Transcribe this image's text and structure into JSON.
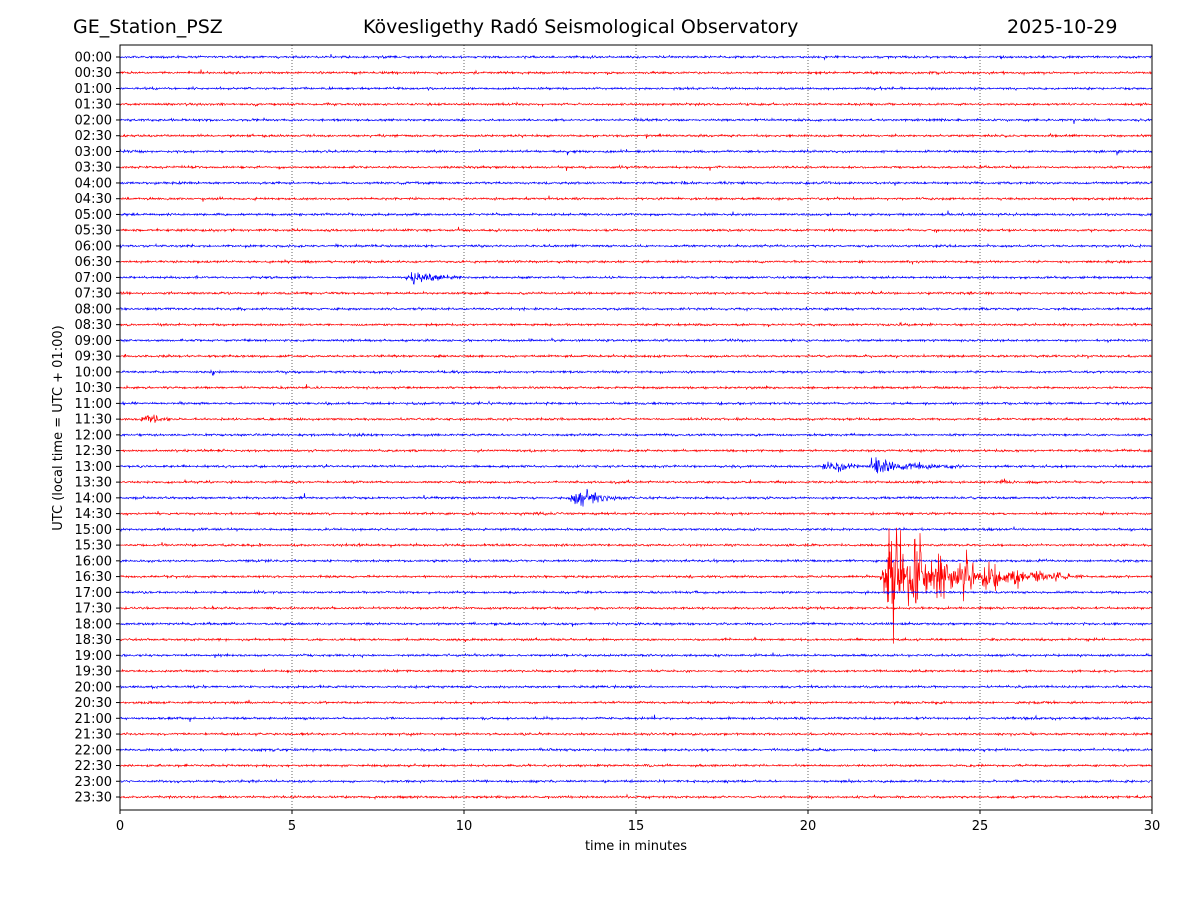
{
  "chart_data": {
    "type": "line",
    "subtype": "helicorder",
    "title_left": "GE_Station_PSZ",
    "title": "Kövesligethy Radó Seismological Observatory",
    "title_right": "2025-10-29",
    "xlabel": "time in minutes",
    "ylabel": "UTC (local time = UTC + 01:00)",
    "xlim": [
      0,
      30
    ],
    "xticks": [
      "0",
      "5",
      "10",
      "15",
      "20",
      "25",
      "30"
    ],
    "xtick_values": [
      0,
      5,
      10,
      15,
      20,
      25,
      30
    ],
    "grid": "vertical dotted at x ticks",
    "row_labels": [
      "00:00",
      "00:30",
      "01:00",
      "01:30",
      "02:00",
      "02:30",
      "03:00",
      "03:30",
      "04:00",
      "04:30",
      "05:00",
      "05:30",
      "06:00",
      "06:30",
      "07:00",
      "07:30",
      "08:00",
      "08:30",
      "09:00",
      "09:30",
      "10:00",
      "10:30",
      "11:00",
      "11:30",
      "12:00",
      "12:30",
      "13:00",
      "13:30",
      "14:00",
      "14:30",
      "15:00",
      "15:30",
      "16:00",
      "16:30",
      "17:00",
      "17:30",
      "18:00",
      "18:30",
      "19:00",
      "19:30",
      "20:00",
      "20:30",
      "21:00",
      "21:30",
      "22:00",
      "22:30",
      "23:00",
      "23:30"
    ],
    "trace_colors": [
      "#0000ff",
      "#ff0000"
    ],
    "noise_level": 0.06,
    "events": [
      {
        "row": "07:00",
        "start_min": 8.3,
        "peak_min": 8.5,
        "end_min": 10.0,
        "relative_amplitude": 0.45
      },
      {
        "row": "10:00",
        "start_min": 2.6,
        "peak_min": 2.7,
        "end_min": 2.95,
        "relative_amplitude": 0.2
      },
      {
        "row": "11:30",
        "start_min": 0.6,
        "peak_min": 1.0,
        "end_min": 1.6,
        "relative_amplitude": 0.2
      },
      {
        "row": "13:00",
        "start_min": 20.4,
        "peak_min": 20.9,
        "end_min": 21.9,
        "relative_amplitude": 0.35
      },
      {
        "row": "13:00",
        "start_min": 21.8,
        "peak_min": 22.0,
        "end_min": 24.5,
        "relative_amplitude": 0.6
      },
      {
        "row": "13:30",
        "start_min": 25.6,
        "peak_min": 25.75,
        "end_min": 26.1,
        "relative_amplitude": 0.2
      },
      {
        "row": "14:00",
        "start_min": 13.1,
        "peak_min": 13.4,
        "end_min": 15.0,
        "relative_amplitude": 0.55
      },
      {
        "row": "16:30",
        "start_min": 22.1,
        "peak_min": 22.2,
        "end_min": 28.0,
        "relative_amplitude": 3.0
      }
    ]
  }
}
